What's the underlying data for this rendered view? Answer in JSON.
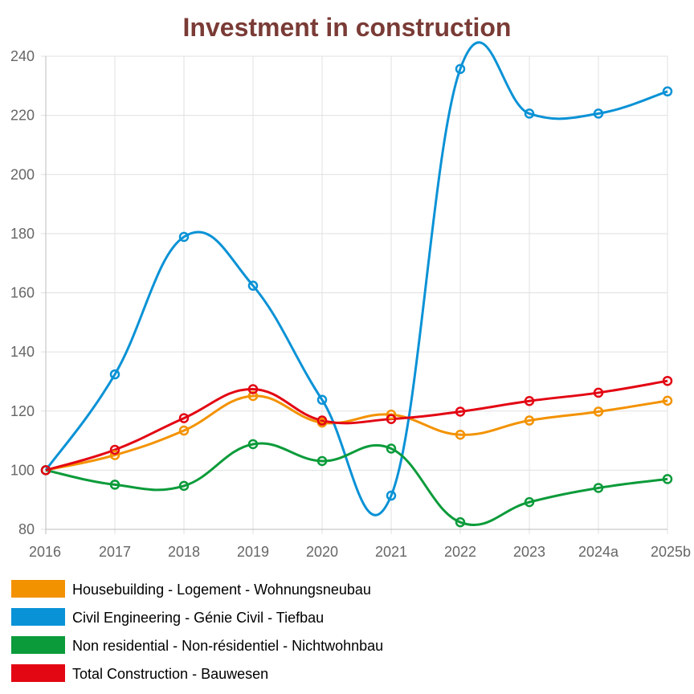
{
  "chart_data": {
    "type": "line",
    "title": "Investment in construction",
    "title_color": "#7a3b36",
    "xlabel": "",
    "ylabel": "",
    "categories": [
      "2016",
      "2017",
      "2018",
      "2019",
      "2020",
      "2021",
      "2022",
      "2023",
      "2024a",
      "2025b"
    ],
    "y_ticks": [
      "80",
      "100",
      "120",
      "140",
      "160",
      "180",
      "200",
      "220",
      "240"
    ],
    "ylim": [
      80,
      240
    ],
    "grid": true,
    "legend_position": "bottom",
    "series": [
      {
        "name": "Housebuilding - Logement - Wohnungsneubau",
        "color": "#f39200",
        "values": [
          100,
          105.1,
          113.4,
          125.1,
          116.1,
          118.8,
          112.0,
          116.8,
          119.8,
          123.5
        ]
      },
      {
        "name": "Civil Engineering - Génie Civil - Tiefbau",
        "color": "#0a92d6",
        "values": [
          100,
          132.4,
          178.9,
          162.4,
          123.8,
          91.4,
          235.7,
          220.6,
          220.6,
          228.1
        ]
      },
      {
        "name": "Non residential - Non-résidentiel - Nichtwohnbau",
        "color": "#0b9b3a",
        "values": [
          100,
          95.1,
          94.7,
          108.8,
          103.1,
          107.3,
          82.4,
          89.2,
          94.0,
          97.0
        ]
      },
      {
        "name": "Total Construction - Bauwesen",
        "color": "#e30613",
        "values": [
          100,
          106.9,
          117.6,
          127.4,
          116.8,
          117.3,
          119.8,
          123.4,
          126.2,
          130.2
        ]
      }
    ]
  }
}
